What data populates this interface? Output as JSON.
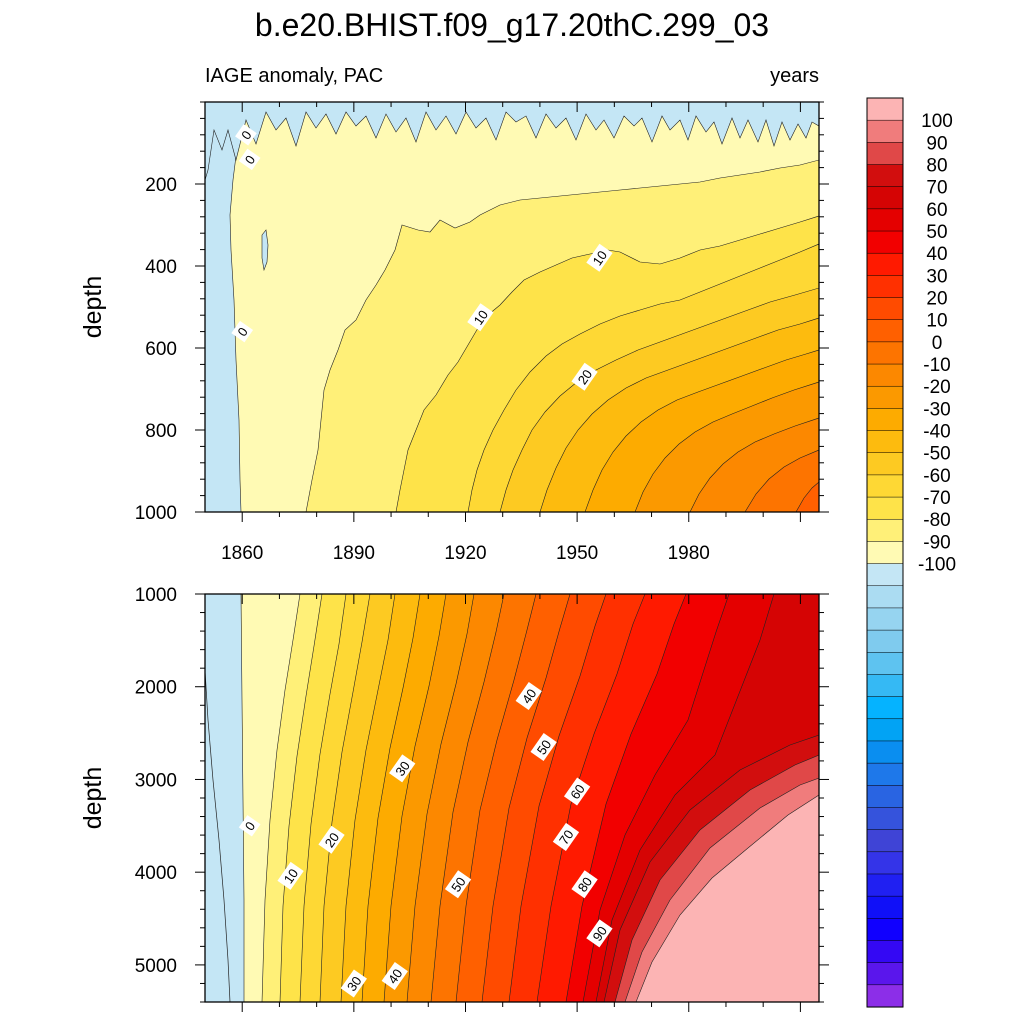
{
  "figure": {
    "title": "b.e20.BHIST.f09_g17.20thC.299_03",
    "subtitle_left": "IAGE anomaly, PAC",
    "subtitle_right": "years"
  },
  "chart_data": [
    {
      "type": "contour",
      "panel": "upper",
      "ylabel": "depth",
      "xlabel": "",
      "xlim": [
        1850,
        2015
      ],
      "ylim": [
        0,
        1000
      ],
      "y_reversed": true,
      "x_ticks": [
        1860,
        1890,
        1920,
        1950,
        1980
      ],
      "y_ticks": [
        200,
        400,
        600,
        800,
        1000
      ],
      "y_tick_labels": [
        "200",
        "400",
        "600",
        "800",
        "1000"
      ],
      "contour_interval": 5,
      "contour_labels": [
        {
          "text": "0",
          "x": 1861,
          "y": 80
        },
        {
          "text": "0",
          "x": 1862,
          "y": 140
        },
        {
          "text": "0",
          "x": 1860,
          "y": 560
        },
        {
          "text": "10",
          "x": 1956,
          "y": 380
        },
        {
          "text": "10",
          "x": 1924,
          "y": 525
        },
        {
          "text": "20",
          "x": 1952,
          "y": 670
        }
      ]
    },
    {
      "type": "contour",
      "panel": "lower",
      "ylabel": "depth",
      "xlabel": "",
      "xlim": [
        1850,
        2015
      ],
      "ylim": [
        1000,
        5400
      ],
      "y_reversed": true,
      "x_ticks": [
        1860,
        1890,
        1920,
        1950,
        1980
      ],
      "y_ticks": [
        1000,
        2000,
        3000,
        4000,
        5000
      ],
      "y_tick_labels": [
        "1000",
        "2000",
        "3000",
        "4000",
        "5000"
      ],
      "contour_interval": 5,
      "contour_labels": [
        {
          "text": "40",
          "x": 1937,
          "y": 2100
        },
        {
          "text": "50",
          "x": 1941,
          "y": 2650
        },
        {
          "text": "30",
          "x": 1903,
          "y": 2880
        },
        {
          "text": "60",
          "x": 1950,
          "y": 3130
        },
        {
          "text": "0",
          "x": 1862,
          "y": 3500
        },
        {
          "text": "20",
          "x": 1884,
          "y": 3650
        },
        {
          "text": "70",
          "x": 1947,
          "y": 3620
        },
        {
          "text": "10",
          "x": 1873,
          "y": 4040
        },
        {
          "text": "80",
          "x": 1952,
          "y": 4130
        },
        {
          "text": "50",
          "x": 1918,
          "y": 4130
        },
        {
          "text": "90",
          "x": 1956,
          "y": 4660
        },
        {
          "text": "30",
          "x": 1890,
          "y": 5200
        },
        {
          "text": "40",
          "x": 1901,
          "y": 5120
        }
      ]
    }
  ],
  "x_tick_labels": [
    "1860",
    "1890",
    "1920",
    "1950",
    "1980"
  ],
  "colorbar": {
    "labels": [
      "100",
      "90",
      "80",
      "70",
      "60",
      "50",
      "40",
      "30",
      "20",
      "10",
      "0",
      "-10",
      "-20",
      "-30",
      "-40",
      "-50",
      "-60",
      "-70",
      "-80",
      "-90",
      "-100"
    ],
    "colors": [
      "#fcb4b4",
      "#f07c7c",
      "#e04848",
      "#d20e0e",
      "#d50404",
      "#e40000",
      "#f20000",
      "#ff1a00",
      "#ff3000",
      "#ff4b00",
      "#ff6000",
      "#fd7400",
      "#fc8800",
      "#fb9900",
      "#fdab00",
      "#fdbb0e",
      "#fdca22",
      "#fed834",
      "#fee349",
      "#fff078",
      "#fffab4",
      "#c4e6f5",
      "#abdcf2",
      "#96d4f0",
      "#7fcbee",
      "#5ec3f0",
      "#35b9f4",
      "#05b3ff",
      "#02a3f4",
      "#0a8ef0",
      "#1e78ea",
      "#2964e2",
      "#3553dc",
      "#3f44d6",
      "#3434e8",
      "#2020f2",
      "#1010f8",
      "#1000ff",
      "#3408f4",
      "#5a16ec",
      "#8c2ee8"
    ]
  }
}
